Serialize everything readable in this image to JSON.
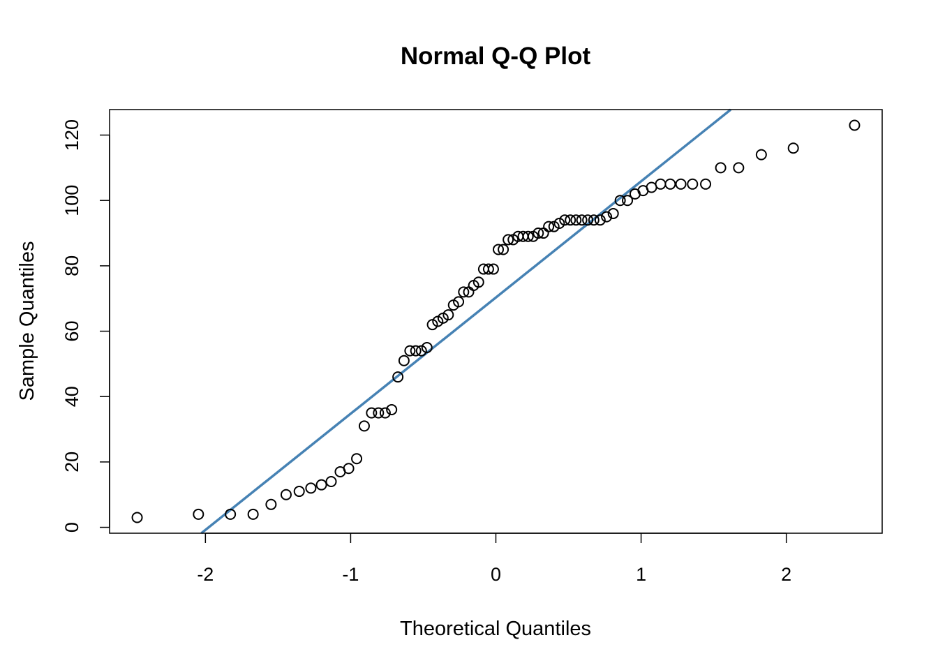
{
  "chart_data": {
    "type": "scatter",
    "title": "Normal Q-Q Plot",
    "xlabel": "Theoretical Quantiles",
    "ylabel": "Sample Quantiles",
    "xlim": [
      -2.66,
      2.66
    ],
    "ylim": [
      -1.8,
      127.8
    ],
    "xticks": [
      -2,
      -1,
      0,
      1,
      2
    ],
    "yticks": [
      0,
      20,
      40,
      60,
      80,
      100,
      120
    ],
    "grid": false,
    "marker": "open-circle",
    "sample_values": [
      3,
      4,
      4,
      4,
      7,
      10,
      11,
      12,
      13,
      14,
      17,
      18,
      21,
      31,
      35,
      35,
      35,
      36,
      46,
      51,
      54,
      54,
      54,
      55,
      62,
      63,
      64,
      65,
      68,
      69,
      72,
      72,
      74,
      75,
      79,
      79,
      79,
      85,
      85,
      88,
      88,
      89,
      89,
      89,
      89,
      90,
      90,
      92,
      92,
      93,
      94,
      94,
      94,
      94,
      94,
      94,
      94,
      95,
      96,
      100,
      100,
      102,
      103,
      104,
      105,
      105,
      105,
      105,
      105,
      110,
      110,
      114,
      116,
      123
    ],
    "reference_line": {
      "intercept": 70.3,
      "slope": 35.55,
      "color": "#4682B4"
    }
  }
}
